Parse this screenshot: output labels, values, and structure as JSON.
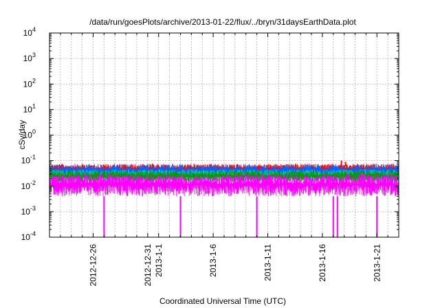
{
  "chart_data": {
    "type": "line",
    "title": "/data/run/goesPlots/archive/2013-01-22/flux/../bryn/31daysEarthData.plot",
    "xlabel": "Coordinated Universal Time (UTC)",
    "ylabel": "cSv/day",
    "y_scale": "log",
    "ylim": [
      0.0001,
      10000
    ],
    "xlim": [
      "2012-12-22",
      "2013-01-23"
    ],
    "grid": true,
    "legend": "none",
    "y_ticks": [
      {
        "base": "10",
        "exp": "-4"
      },
      {
        "base": "10",
        "exp": "-3"
      },
      {
        "base": "10",
        "exp": "-2"
      },
      {
        "base": "10",
        "exp": "-1"
      },
      {
        "base": "10",
        "exp": "0"
      },
      {
        "base": "10",
        "exp": "1"
      },
      {
        "base": "10",
        "exp": "2"
      },
      {
        "base": "10",
        "exp": "3"
      },
      {
        "base": "10",
        "exp": "4"
      }
    ],
    "x_ticks": [
      {
        "date": "2012-12-26",
        "label": "2012-12-26"
      },
      {
        "date": "2012-12-31",
        "label": "2012-12-31"
      },
      {
        "date": "2013-01-01",
        "label": "2013-1-1"
      },
      {
        "date": "2013-01-06",
        "label": "2013-1-6"
      },
      {
        "date": "2013-01-11",
        "label": "2013-1-11"
      },
      {
        "date": "2013-01-16",
        "label": "2013-1-16"
      },
      {
        "date": "2013-01-21",
        "label": "2013-1-21"
      }
    ],
    "series": [
      {
        "color": "#ff0000",
        "typical_range": [
          0.03,
          0.075
        ]
      },
      {
        "color": "#0066ff",
        "typical_range": [
          0.02,
          0.07
        ]
      },
      {
        "color": "#00cccc",
        "typical_range": [
          0.015,
          0.045
        ]
      },
      {
        "color": "#009900",
        "typical_range": [
          0.015,
          0.04
        ]
      },
      {
        "color": "#ff00ff",
        "typical_range": [
          0.004,
          0.03
        ],
        "dropouts": [
          "2012-12-27",
          "2013-01-03",
          "2013-01-10",
          "2013-01-17",
          "2013-01-17",
          "2013-01-21"
        ]
      }
    ],
    "annotations": [
      {
        "date": "2013-01-18",
        "value": 0.1,
        "series": 0
      }
    ]
  }
}
